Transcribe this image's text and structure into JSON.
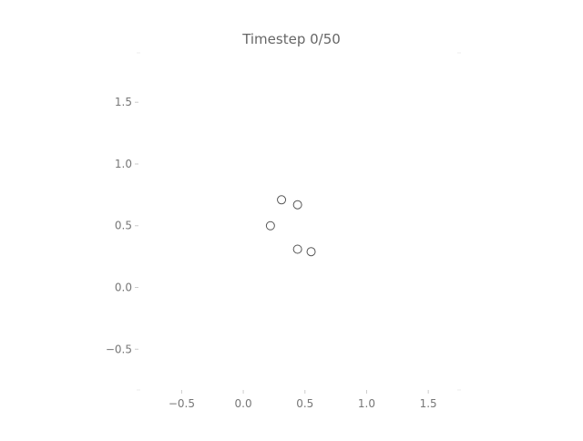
{
  "chart_data": {
    "type": "scatter",
    "title": "Timestep 0/50",
    "xlabel": "",
    "ylabel": "",
    "xlim": [
      -0.85,
      1.75
    ],
    "ylim": [
      -0.83,
      1.9
    ],
    "grid": false,
    "x_ticks": [
      -0.5,
      0.0,
      0.5,
      1.0,
      1.5
    ],
    "y_ticks": [
      -0.5,
      0.0,
      0.5,
      1.0,
      1.5
    ],
    "x_tick_labels": [
      "−0.5",
      "0.0",
      "0.5",
      "1.0",
      "1.5"
    ],
    "y_tick_labels": [
      "−0.5",
      "0.0",
      "0.5",
      "1.0",
      "1.5"
    ],
    "marker": "hollow-circle",
    "marker_color": "#555555",
    "points": [
      {
        "x": 0.31,
        "y": 0.71
      },
      {
        "x": 0.44,
        "y": 0.67
      },
      {
        "x": 0.22,
        "y": 0.5
      },
      {
        "x": 0.44,
        "y": 0.31
      },
      {
        "x": 0.55,
        "y": 0.29
      }
    ]
  }
}
